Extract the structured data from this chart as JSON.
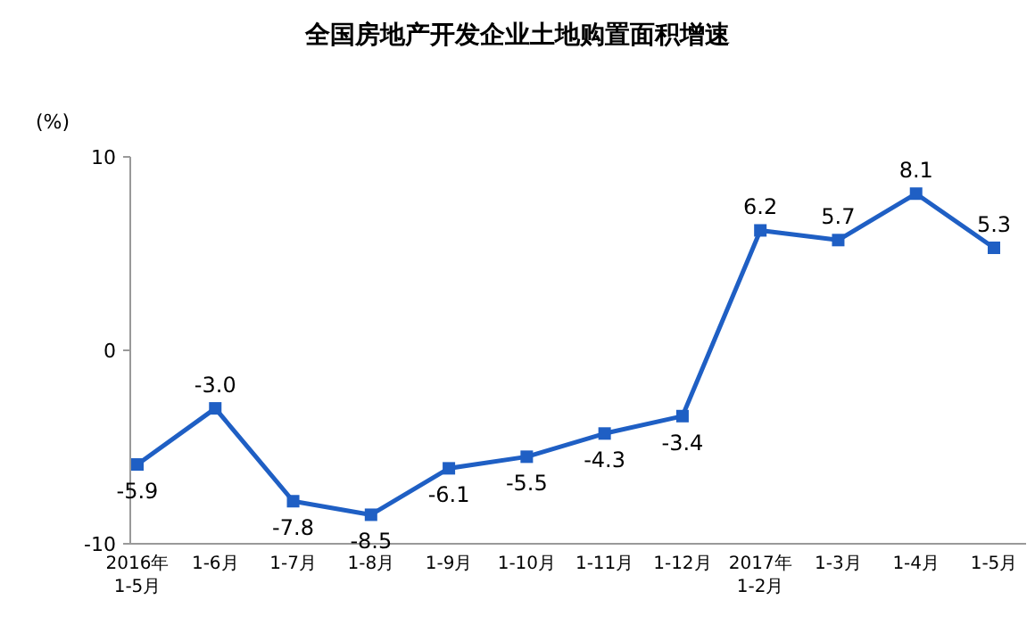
{
  "chart_data": {
    "type": "line",
    "title": "全国房地产开发企业土地购置面积增速",
    "ylabel": "(%)",
    "categories": [
      "2016年\n1-5月",
      "1-6月",
      "1-7月",
      "1-8月",
      "1-9月",
      "1-10月",
      "1-11月",
      "1-12月",
      "2017年\n1-2月",
      "1-3月",
      "1-4月",
      "1-5月"
    ],
    "series": [
      {
        "color": "#1f5fc4",
        "values": [
          -5.9,
          -3.0,
          -7.8,
          -8.5,
          -6.1,
          -5.5,
          -4.3,
          -3.4,
          6.2,
          5.7,
          8.1,
          5.3
        ],
        "value_labels": [
          "-5.9",
          "-3.0",
          "-7.8",
          "-8.5",
          "-6.1",
          "-5.5",
          "-4.3",
          "-3.4",
          "6.2",
          "5.7",
          "8.1",
          "5.3"
        ]
      }
    ],
    "ylim": [
      -10,
      10
    ],
    "yticks": [
      -10,
      0,
      10
    ],
    "marker": "square",
    "line_style": "solid",
    "grid": false
  }
}
